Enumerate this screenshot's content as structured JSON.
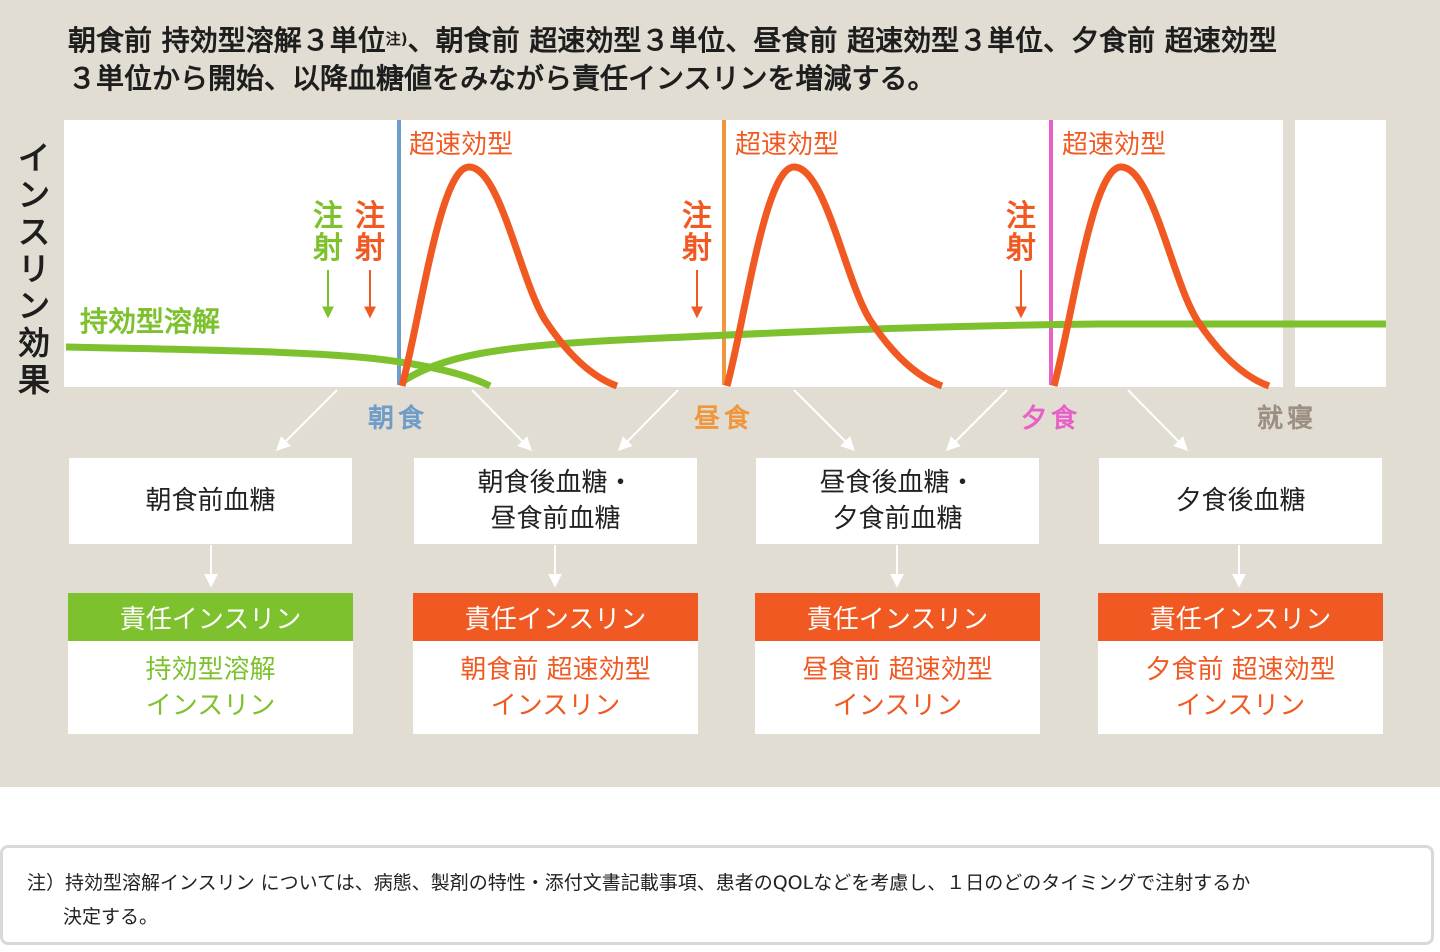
{
  "heading": {
    "line1_part1": "朝食前 持効型溶解３単位",
    "note_mark": "注)",
    "line1_part2": "、朝食前 超速効型３単位、昼食前 超速効型３単位、夕食前 超速効型",
    "line2": "３単位から開始、以降血糖値をみながら責任インスリンを増減する。"
  },
  "chart": {
    "y_axis_label": "インスリン効果",
    "long_acting_label": "持効型溶解",
    "rapid_label": "超速効型",
    "injection_label": "注射",
    "meals": {
      "breakfast": "朝食",
      "lunch": "昼食",
      "dinner": "夕食",
      "bedtime": "就寝"
    },
    "colors": {
      "green": "#7dc22e",
      "orange": "#f05a22",
      "blue": "#6f9cc8",
      "lunch": "#f0963c",
      "pink": "#e860c8",
      "gray": "#9b8f82"
    }
  },
  "glucose_boxes": [
    {
      "lines": [
        "朝食前血糖"
      ]
    },
    {
      "lines": [
        "朝食後血糖・",
        "昼食前血糖"
      ]
    },
    {
      "lines": [
        "昼食後血糖・",
        "夕食前血糖"
      ]
    },
    {
      "lines": [
        "夕食後血糖"
      ]
    }
  ],
  "responsible": [
    {
      "header": "責任インスリン",
      "lines": [
        "持効型溶解",
        "インスリン"
      ],
      "color": "#7dc22e"
    },
    {
      "header": "責任インスリン",
      "lines": [
        "朝食前 超速効型",
        "インスリン"
      ],
      "color": "#f05a22"
    },
    {
      "header": "責任インスリン",
      "lines": [
        "昼食前 超速効型",
        "インスリン"
      ],
      "color": "#f05a22"
    },
    {
      "header": "責任インスリン",
      "lines": [
        "夕食前 超速効型",
        "インスリン"
      ],
      "color": "#f05a22"
    }
  ],
  "footnote": {
    "line1": "注）持効型溶解インスリン については、病態、製剤の特性・添付文書記載事項、患者のQOLなどを考慮し、１日のどのタイミングで注射するか",
    "line2": "決定する。"
  }
}
